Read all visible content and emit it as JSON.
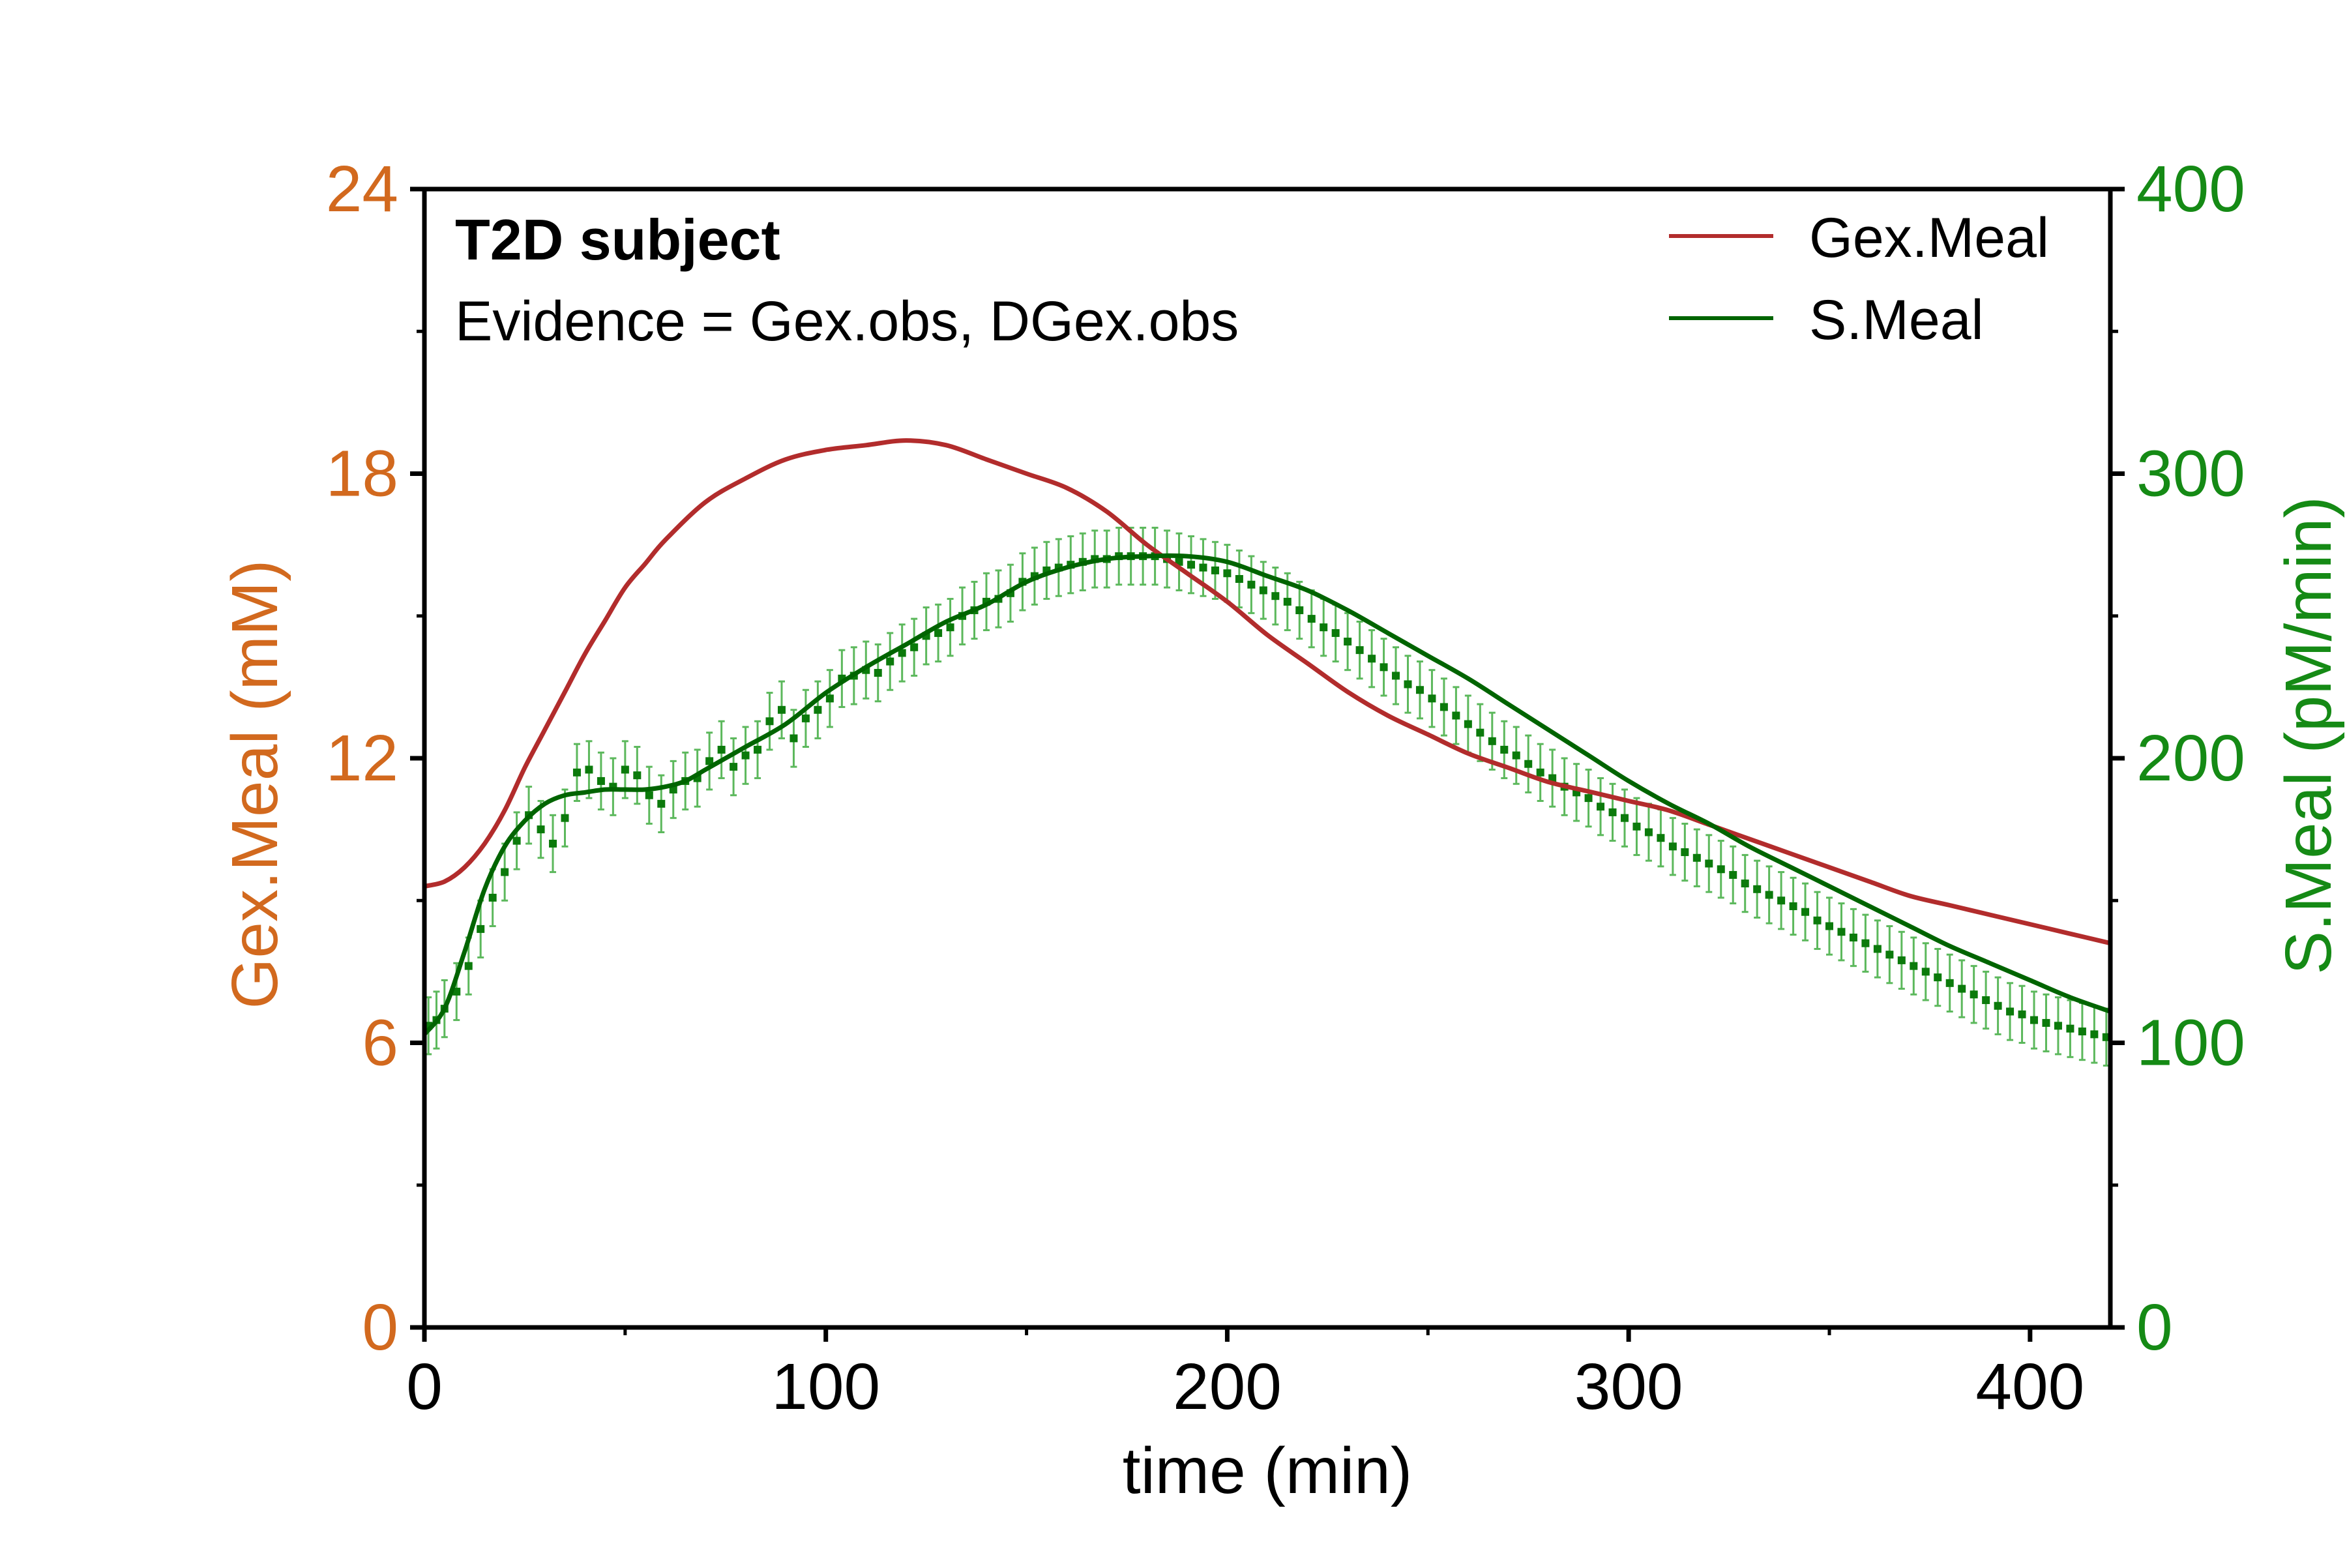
{
  "chart_data": {
    "type": "line",
    "annotations": [
      "T2D subject",
      "Evidence = Gex.obs, DGex.obs"
    ],
    "xlabel": "time (min)",
    "ylabel_left": "Gex.Meal (mM)",
    "ylabel_right": "S.Meal (pM/min)",
    "xlim": [
      0,
      420
    ],
    "ylim_left": [
      0,
      24
    ],
    "ylim_right": [
      0,
      400
    ],
    "x_ticks": [
      "0",
      "100",
      "200",
      "300",
      "400"
    ],
    "y_left_ticks": [
      "0",
      "6",
      "12",
      "18",
      "24"
    ],
    "y_right_ticks": [
      "0",
      "100",
      "200",
      "300",
      "400"
    ],
    "legend_position": "top-right",
    "legend": [
      "Gex.Meal",
      "S.Meal"
    ],
    "colors": {
      "gex": "#b22c2c",
      "s_line": "#006400",
      "s_points": "#0b7a0b",
      "s_errorbars": "#5cb85c",
      "left_axis": "#d2691e",
      "right_axis": "#158a15",
      "frame": "#000000"
    },
    "series": [
      {
        "name": "Gex.Meal",
        "axis": "left",
        "x": [
          0,
          5,
          10,
          15,
          20,
          25,
          30,
          35,
          40,
          45,
          50,
          55,
          60,
          70,
          80,
          90,
          100,
          110,
          120,
          130,
          140,
          150,
          160,
          170,
          180,
          190,
          200,
          210,
          220,
          230,
          240,
          250,
          260,
          270,
          280,
          290,
          300,
          310,
          320,
          330,
          340,
          350,
          360,
          370,
          380,
          390,
          400,
          410,
          420
        ],
        "values": [
          9.3,
          9.4,
          9.7,
          10.2,
          10.9,
          11.8,
          12.6,
          13.4,
          14.2,
          14.9,
          15.6,
          16.1,
          16.6,
          17.4,
          17.9,
          18.3,
          18.5,
          18.6,
          18.7,
          18.6,
          18.3,
          18.0,
          17.7,
          17.2,
          16.5,
          15.9,
          15.3,
          14.6,
          14.0,
          13.4,
          12.9,
          12.5,
          12.1,
          11.8,
          11.5,
          11.3,
          11.1,
          10.9,
          10.6,
          10.3,
          10.0,
          9.7,
          9.4,
          9.1,
          8.9,
          8.7,
          8.5,
          8.3,
          8.1
        ]
      },
      {
        "name": "S.Meal",
        "axis": "right",
        "x": [
          0,
          5,
          10,
          15,
          20,
          25,
          30,
          35,
          40,
          45,
          50,
          55,
          60,
          65,
          70,
          75,
          80,
          90,
          100,
          110,
          120,
          130,
          140,
          150,
          160,
          170,
          180,
          190,
          200,
          210,
          220,
          230,
          240,
          250,
          260,
          270,
          280,
          290,
          300,
          310,
          320,
          330,
          340,
          350,
          360,
          370,
          380,
          390,
          400,
          410,
          420
        ],
        "values": [
          103,
          112,
          132,
          154,
          169,
          178,
          184,
          187,
          188,
          189,
          189,
          189,
          190,
          192,
          196,
          200,
          204,
          212,
          223,
          232,
          240,
          248,
          254,
          262,
          267,
          270,
          271,
          271,
          269,
          264,
          259,
          252,
          244,
          236,
          228,
          219,
          210,
          201,
          192,
          184,
          177,
          169,
          162,
          155,
          148,
          141,
          134,
          128,
          122,
          116,
          111
        ]
      },
      {
        "name": "",
        "axis": "right",
        "x": [
          1,
          3,
          5,
          8,
          11,
          14,
          17,
          20,
          23,
          26,
          29,
          32,
          35,
          38,
          41,
          44,
          47,
          50,
          53,
          56,
          59,
          62,
          65,
          68,
          71,
          74,
          77,
          80,
          83,
          86,
          89,
          92,
          95,
          98,
          101,
          104,
          107,
          110,
          113,
          116,
          119,
          122,
          125,
          128,
          131,
          134,
          137,
          140,
          143,
          146,
          149,
          152,
          155,
          158,
          161,
          164,
          167,
          170,
          173,
          176,
          179,
          182,
          185,
          188,
          191,
          194,
          197,
          200,
          203,
          206,
          209,
          212,
          215,
          218,
          221,
          224,
          227,
          230,
          233,
          236,
          239,
          242,
          245,
          248,
          251,
          254,
          257,
          260,
          263,
          266,
          269,
          272,
          275,
          278,
          281,
          284,
          287,
          290,
          293,
          296,
          299,
          302,
          305,
          308,
          311,
          314,
          317,
          320,
          323,
          326,
          329,
          332,
          335,
          338,
          341,
          344,
          347,
          350,
          353,
          356,
          359,
          362,
          365,
          368,
          371,
          374,
          377,
          380,
          383,
          386,
          389,
          392,
          395,
          398,
          401,
          404,
          407,
          410,
          413,
          416,
          419
        ],
        "values": [
          106,
          108,
          112,
          118,
          127,
          140,
          151,
          160,
          171,
          180,
          175,
          170,
          179,
          195,
          196,
          192,
          190,
          196,
          194,
          187,
          184,
          189,
          192,
          193,
          199,
          203,
          197,
          201,
          203,
          213,
          217,
          207,
          214,
          217,
          221,
          228,
          229,
          231,
          230,
          234,
          237,
          239,
          243,
          244,
          246,
          250,
          252,
          255,
          256,
          258,
          262,
          264,
          266,
          267,
          268,
          269,
          270,
          270,
          271,
          271,
          271,
          271,
          270,
          269,
          268,
          267,
          266,
          265,
          263,
          261,
          259,
          257,
          255,
          252,
          249,
          246,
          244,
          241,
          238,
          235,
          232,
          229,
          226,
          224,
          221,
          218,
          215,
          212,
          209,
          206,
          203,
          201,
          198,
          195,
          193,
          190,
          188,
          186,
          183,
          181,
          179,
          176,
          174,
          172,
          169,
          167,
          165,
          163,
          161,
          159,
          156,
          154,
          152,
          150,
          148,
          146,
          143,
          141,
          139,
          137,
          135,
          133,
          131,
          129,
          127,
          125,
          123,
          121,
          119,
          117,
          115,
          113,
          111,
          110,
          108,
          107,
          106,
          105,
          104,
          103,
          102
        ],
        "error": 10
      }
    ]
  }
}
